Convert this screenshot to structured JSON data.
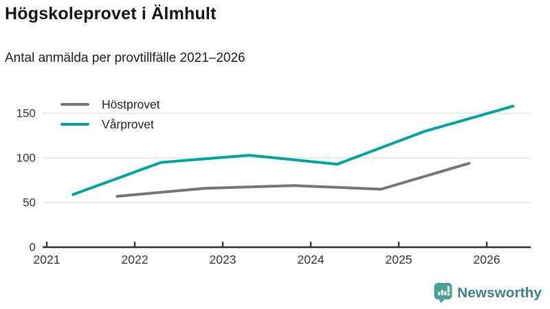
{
  "header": {
    "title": "Högskoleprovet i Älmhult",
    "subtitle": "Antal anmälda per provtillfälle 2021–2026"
  },
  "chart_data": {
    "type": "line",
    "title": "Högskoleprovet i Älmhult",
    "subtitle": "Antal anmälda per provtillfälle 2021–2026",
    "xlabel": "",
    "ylabel": "",
    "x_ticks": [
      2021,
      2022,
      2023,
      2024,
      2025,
      2026
    ],
    "y_ticks": [
      0,
      50,
      100,
      150
    ],
    "xlim": [
      2021,
      2026.5
    ],
    "ylim": [
      0,
      165
    ],
    "grid": "horizontal",
    "legend_position": "top-left",
    "series": [
      {
        "name": "Höstprovet",
        "color": "#757575",
        "x": [
          2021.8,
          2022.8,
          2023.8,
          2024.8,
          2025.8
        ],
        "values": [
          57,
          66,
          69,
          65,
          94
        ]
      },
      {
        "name": "Vårprovet",
        "color": "#00a49c",
        "x": [
          2021.3,
          2022.3,
          2023.3,
          2024.3,
          2025.3,
          2026.3
        ],
        "values": [
          59,
          95,
          103,
          93,
          130,
          158
        ]
      }
    ]
  },
  "branding": {
    "logo_text": "Newsworthy",
    "logo_text_color": "#3e7f87",
    "icon_color": "#48a29a",
    "icon_glyph_color": "#ffffff"
  },
  "colors": {
    "axis": "#2f2f2f",
    "gridline": "#e3e3e3",
    "tick_label": "#333333"
  }
}
